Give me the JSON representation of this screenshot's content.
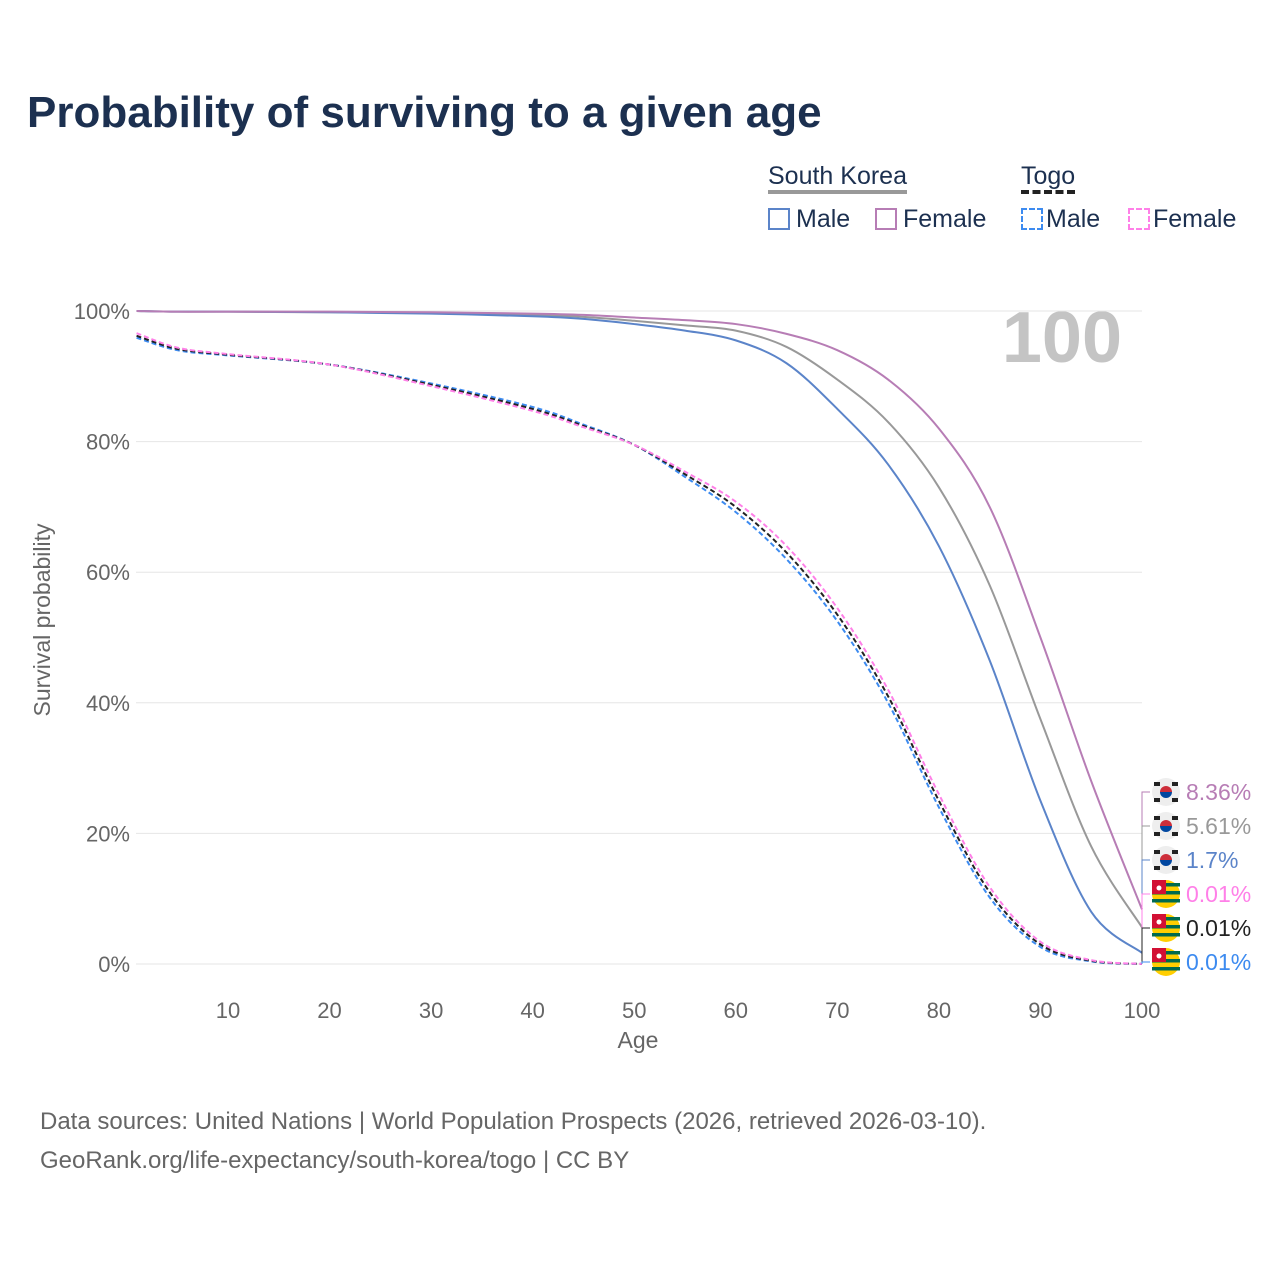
{
  "title": "Probability of surviving to a given age",
  "legend": {
    "groups": [
      {
        "name": "South Korea",
        "items": [
          "Male",
          "Female"
        ]
      },
      {
        "name": "Togo",
        "items": [
          "Male",
          "Female"
        ]
      }
    ]
  },
  "age_marker": "100",
  "footer": {
    "line1": "Data sources: United Nations | World Population Prospects (2026, retrieved 2026-03-10).",
    "line2": "GeoRank.org/life-expectancy/south-korea/togo | CC BY"
  },
  "chart_data": {
    "type": "line",
    "xlabel": "Age",
    "ylabel": "Survival probability",
    "xlim": [
      1,
      100
    ],
    "ylim": [
      0,
      100
    ],
    "xticks": [
      10,
      20,
      30,
      40,
      50,
      60,
      70,
      80,
      90,
      100
    ],
    "yticks": [
      0,
      20,
      40,
      60,
      80,
      100
    ],
    "ytick_labels": [
      "0%",
      "20%",
      "40%",
      "60%",
      "80%",
      "100%"
    ],
    "x": [
      1,
      5,
      10,
      20,
      30,
      40,
      45,
      50,
      55,
      60,
      65,
      70,
      75,
      80,
      85,
      90,
      95,
      100
    ],
    "series": [
      {
        "name": "South Korea Male",
        "color": "#5b84c9",
        "dash": false,
        "end_label": "1.7%",
        "flag": "south-korea",
        "values": [
          100,
          99.9,
          99.9,
          99.8,
          99.6,
          99.2,
          98.8,
          98,
          97,
          95.5,
          92,
          85,
          76.5,
          64,
          46.5,
          25,
          8,
          1.7
        ]
      },
      {
        "name": "South Korea Female",
        "color": "#b77db5",
        "dash": false,
        "end_label": "8.36%",
        "flag": "south-korea",
        "values": [
          100,
          99.9,
          99.9,
          99.9,
          99.8,
          99.6,
          99.4,
          99,
          98.6,
          98,
          96.5,
          94,
          89.5,
          82,
          70,
          50,
          28,
          8.36
        ]
      },
      {
        "name": "South Korea",
        "color": "#999999",
        "dash": false,
        "end_label": "5.61%",
        "flag": "south-korea",
        "values": [
          100,
          99.9,
          99.9,
          99.8,
          99.7,
          99.4,
          99.1,
          98.5,
          97.8,
          97,
          94.5,
          89.5,
          83,
          73,
          58,
          37.5,
          18,
          5.61
        ]
      },
      {
        "name": "Togo Male",
        "color": "#3d8bf0",
        "dash": true,
        "end_label": "0.01%",
        "flag": "togo",
        "values": [
          95.9,
          94,
          93.2,
          91.8,
          88.9,
          85.3,
          82.6,
          79.5,
          74.6,
          69.2,
          62,
          52.5,
          40,
          24,
          10.2,
          2.6,
          0.4,
          0.01
        ]
      },
      {
        "name": "Togo Female",
        "color": "#ff80e8",
        "dash": true,
        "end_label": "0.01%",
        "flag": "togo",
        "values": [
          96.6,
          94.4,
          93.4,
          91.8,
          88.5,
          84.7,
          82.2,
          79.5,
          75.4,
          70.8,
          64,
          54.5,
          42,
          26,
          11.8,
          3.4,
          0.6,
          0.01
        ]
      },
      {
        "name": "Togo",
        "color": "#222222",
        "dash": true,
        "end_label": "0.01%",
        "flag": "togo",
        "values": [
          96.2,
          94.2,
          93.3,
          91.8,
          88.7,
          85,
          82.4,
          79.5,
          75,
          70,
          63,
          53.5,
          41,
          25,
          11,
          3,
          0.5,
          0.01
        ]
      }
    ]
  }
}
